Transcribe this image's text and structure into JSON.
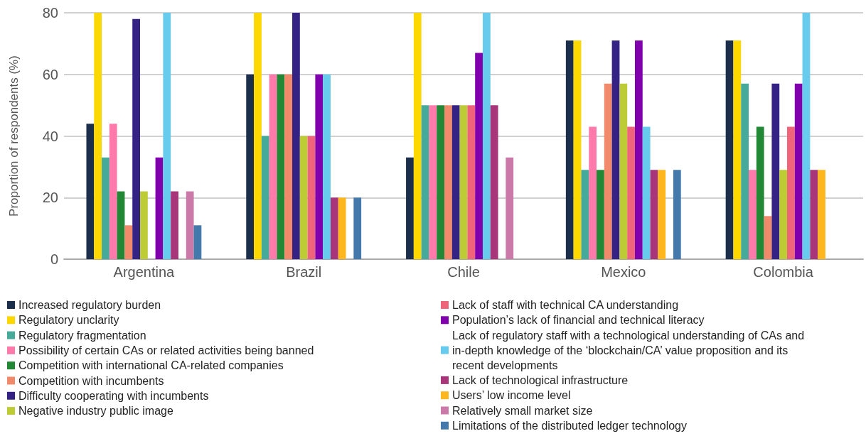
{
  "chart_data": {
    "type": "bar",
    "ylabel": "Proportion of respondents (%)",
    "categories": [
      "Argentina",
      "Brazil",
      "Chile",
      "Mexico",
      "Colombia"
    ],
    "ylim": [
      0,
      80
    ],
    "yticks": [
      0,
      20,
      40,
      60,
      80
    ],
    "grid": "y",
    "legend": "bottom",
    "series": [
      {
        "name": "Increased regulatory burden",
        "color": "#1b2e4b",
        "values": [
          44,
          60,
          33,
          71,
          71
        ]
      },
      {
        "name": "Regulatory unclarity",
        "color": "#fcd800",
        "values": [
          80,
          80,
          80,
          71,
          71
        ]
      },
      {
        "name": "Regulatory fragmentation",
        "color": "#46aa9a",
        "values": [
          33,
          40,
          50,
          29,
          57
        ]
      },
      {
        "name": "Possibility of certain CAs or related activities being banned",
        "color": "#fe7aaa",
        "values": [
          44,
          60,
          50,
          43,
          29
        ]
      },
      {
        "name": "Competition with international CA-related companies",
        "color": "#238836",
        "values": [
          22,
          60,
          50,
          29,
          43
        ]
      },
      {
        "name": "Competition with incumbents",
        "color": "#f08a6a",
        "values": [
          11,
          60,
          50,
          57,
          14
        ]
      },
      {
        "name": "Difficulty cooperating with incumbents",
        "color": "#352285",
        "values": [
          78,
          80,
          50,
          71,
          57
        ]
      },
      {
        "name": "Negative industry public image",
        "color": "#bdcc34",
        "values": [
          22,
          40,
          50,
          57,
          29
        ]
      },
      {
        "name": "Lack of staff with technical CA understanding",
        "color": "#ef647a",
        "values": [
          0,
          40,
          50,
          43,
          43
        ]
      },
      {
        "name": "Population’s lack of financial and technical literacy",
        "color": "#8000ae",
        "values": [
          33,
          60,
          67,
          71,
          57
        ]
      },
      {
        "name": "Lack of regulatory staff with a technological understanding of CAs and in-depth knowledge of the ‘blockchain/CA’ value proposition and its recent developments",
        "color": "#66cbec",
        "values": [
          80,
          60,
          80,
          43,
          80
        ]
      },
      {
        "name": "Lack of technological infrastructure",
        "color": "#a8357a",
        "values": [
          22,
          20,
          50,
          29,
          29
        ]
      },
      {
        "name": "Users’ low income level",
        "color": "#fdb61e",
        "values": [
          0,
          20,
          0,
          29,
          29
        ]
      },
      {
        "name": "Relatively small market size",
        "color": "#cb79a8",
        "values": [
          22,
          0,
          33,
          0,
          0
        ]
      },
      {
        "name": "Limitations of the distributed ledger technology",
        "color": "#4479ab",
        "values": [
          11,
          20,
          0,
          29,
          0
        ]
      }
    ]
  }
}
